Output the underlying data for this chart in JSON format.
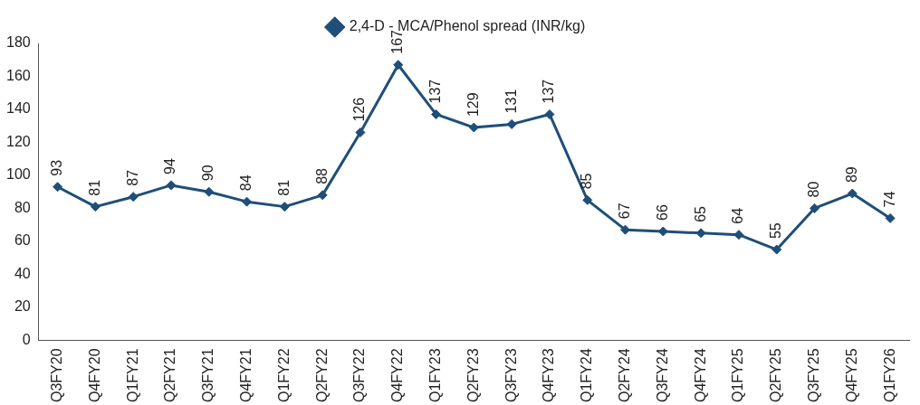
{
  "chart_data": {
    "type": "line",
    "categories": [
      "Q3FY20",
      "Q4FY20",
      "Q1FY21",
      "Q2FY21",
      "Q3FY21",
      "Q4FY21",
      "Q1FY22",
      "Q2FY22",
      "Q3FY22",
      "Q4FY22",
      "Q1FY23",
      "Q2FY23",
      "Q3FY23",
      "Q4FY23",
      "Q1FY24",
      "Q2FY24",
      "Q3FY24",
      "Q4FY24",
      "Q1FY25",
      "Q2FY25",
      "Q3FY25",
      "Q4FY25",
      "Q1FY26"
    ],
    "series": [
      {
        "name": "2,4-D - MCA/Phenol spread (INR/kg)",
        "color": "#1f4e79",
        "values": [
          93,
          81,
          87,
          94,
          90,
          84,
          81,
          88,
          126,
          167,
          137,
          129,
          131,
          137,
          85,
          67,
          66,
          65,
          64,
          55,
          80,
          89,
          74
        ]
      }
    ],
    "ylim": [
      0,
      180
    ],
    "yticks": [
      0,
      20,
      40,
      60,
      80,
      100,
      120,
      140,
      160,
      180
    ],
    "grid": false,
    "legend": "top",
    "marker": "diamond",
    "line_style": "solid",
    "data_labels": true
  }
}
